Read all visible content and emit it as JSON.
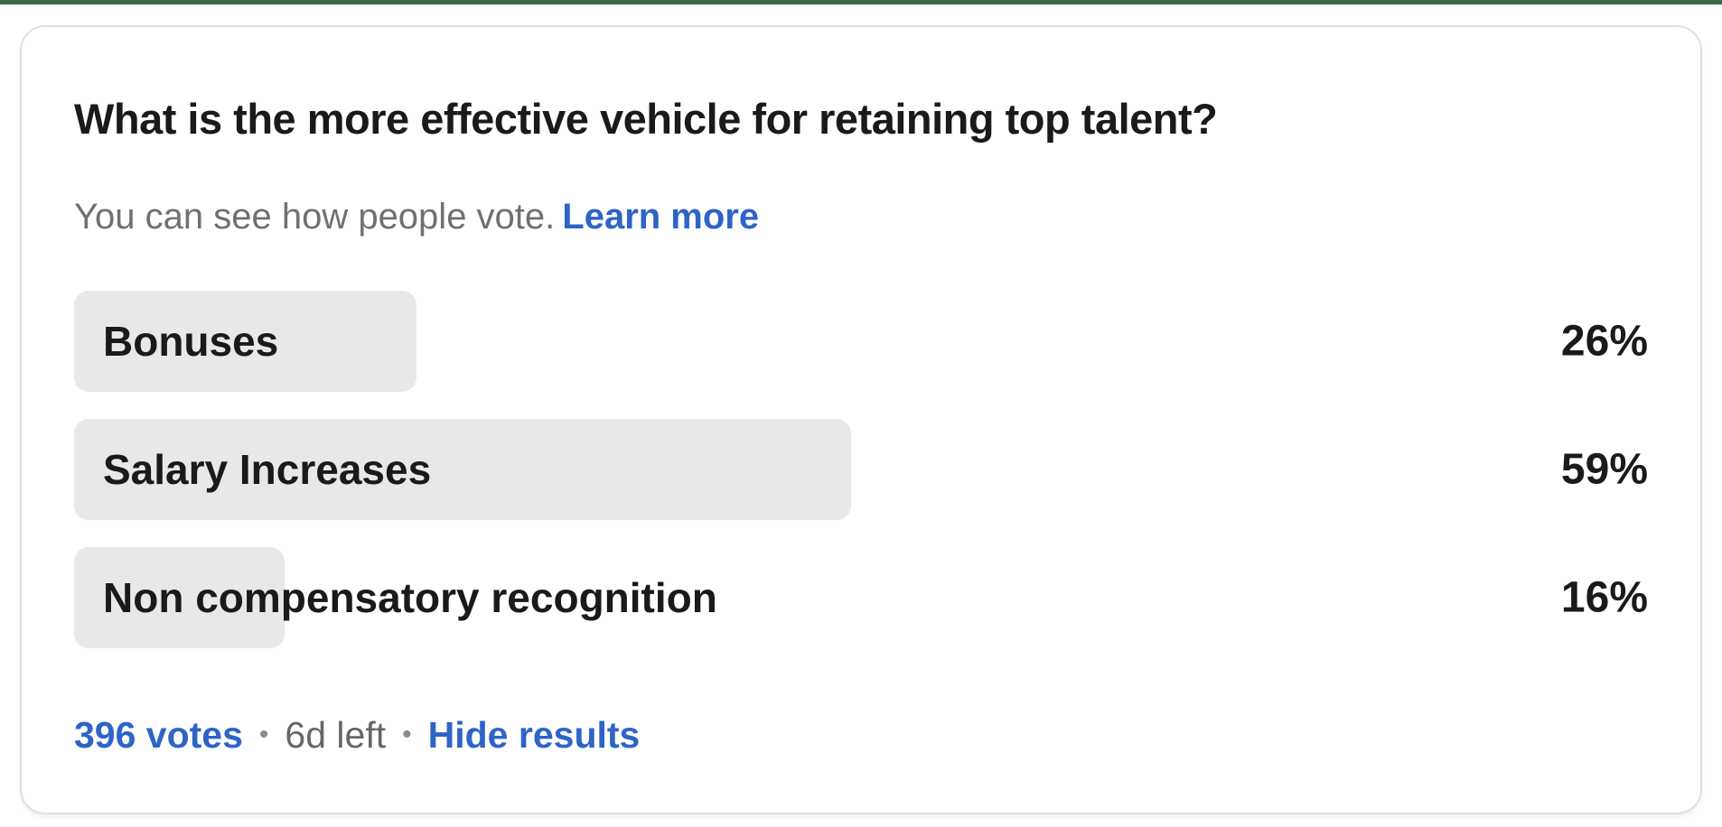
{
  "poll": {
    "question": "What is the more effective vehicle for retaining top talent?",
    "visibility_note": "You can see how people vote.",
    "learn_more_label": "Learn more",
    "options": [
      {
        "label": "Bonuses",
        "value": 26,
        "percent_label": "26%"
      },
      {
        "label": "Salary Increases",
        "value": 59,
        "percent_label": "59%"
      },
      {
        "label": "Non compensatory recognition",
        "value": 16,
        "percent_label": "16%"
      }
    ],
    "footer": {
      "votes_label": "396 votes",
      "separator": "•",
      "time_left": "6d left",
      "hide_results_label": "Hide results"
    },
    "colors": {
      "top_bar_green": "#3e684a",
      "link_blue": "#2d64c8",
      "bar_fill": "#e9e8e7",
      "text_dark": "#1a1a1a",
      "text_gray": "#707070",
      "card_border": "#e0e0e0"
    }
  }
}
